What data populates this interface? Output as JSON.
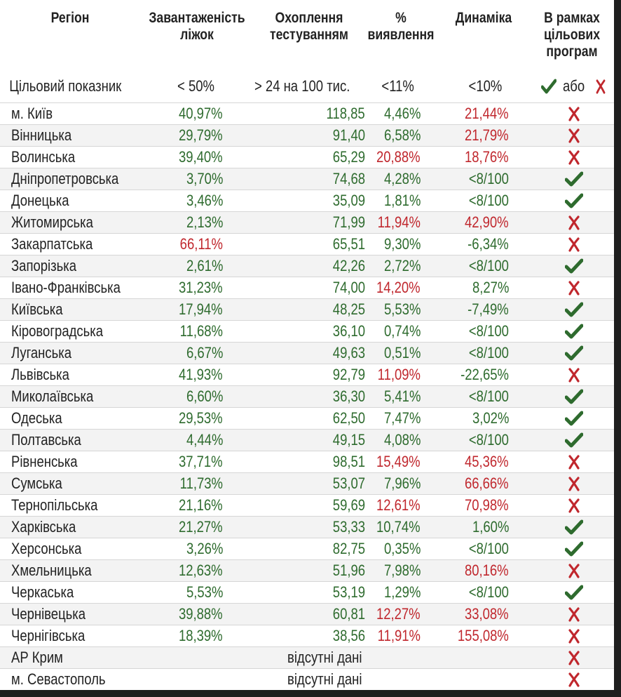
{
  "headers": {
    "region": "Регіон",
    "beds_line1": "Завантаженість",
    "beds_line2": "ліжок",
    "testing_line1": "Охоплення",
    "testing_line2": "тестуванням",
    "detection_line1": "%",
    "detection_line2": "виявлення",
    "dynamics": "Динаміка",
    "program_line1": "В рамках",
    "program_line2": "цільових",
    "program_line3": "програм"
  },
  "targets": {
    "label": "Цільовий показник",
    "beds": "< 50%",
    "testing": "> 24 на 100 тис.",
    "detection": "<11%",
    "dynamics": "<10%",
    "or_word": "або",
    "yes_icon": "check-icon",
    "no_icon": "cross-icon"
  },
  "colors": {
    "good": "#2e6b2e",
    "bad": "#c0272d",
    "neutral": "#222222"
  },
  "rows": [
    {
      "region": "м. Київ",
      "beds": "40,97%",
      "beds_c": "g",
      "testing": "118,85",
      "testing_c": "g",
      "detection": "4,46%",
      "detection_c": "g",
      "dynamics": "21,44%",
      "dynamics_c": "r",
      "program": "no"
    },
    {
      "region": "Вінницька",
      "beds": "29,79%",
      "beds_c": "g",
      "testing": "91,40",
      "testing_c": "g",
      "detection": "6,58%",
      "detection_c": "g",
      "dynamics": "21,79%",
      "dynamics_c": "r",
      "program": "no"
    },
    {
      "region": "Волинська",
      "beds": "39,40%",
      "beds_c": "g",
      "testing": "65,29",
      "testing_c": "g",
      "detection": "20,88%",
      "detection_c": "r",
      "dynamics": "18,76%",
      "dynamics_c": "r",
      "program": "no"
    },
    {
      "region": "Дніпропетровська",
      "beds": "3,70%",
      "beds_c": "g",
      "testing": "74,68",
      "testing_c": "g",
      "detection": "4,28%",
      "detection_c": "g",
      "dynamics": "<8/100",
      "dynamics_c": "g",
      "program": "yes"
    },
    {
      "region": "Донецька",
      "beds": "3,46%",
      "beds_c": "g",
      "testing": "35,09",
      "testing_c": "g",
      "detection": "1,81%",
      "detection_c": "g",
      "dynamics": "<8/100",
      "dynamics_c": "g",
      "program": "yes"
    },
    {
      "region": "Житомирська",
      "beds": "2,13%",
      "beds_c": "g",
      "testing": "71,99",
      "testing_c": "g",
      "detection": "11,94%",
      "detection_c": "r",
      "dynamics": "42,90%",
      "dynamics_c": "r",
      "program": "no"
    },
    {
      "region": "Закарпатська",
      "beds": "66,11%",
      "beds_c": "r",
      "testing": "65,51",
      "testing_c": "g",
      "detection": "9,30%",
      "detection_c": "g",
      "dynamics": "-6,34%",
      "dynamics_c": "g",
      "program": "no"
    },
    {
      "region": "Запорізька",
      "beds": "2,61%",
      "beds_c": "g",
      "testing": "42,26",
      "testing_c": "g",
      "detection": "2,72%",
      "detection_c": "g",
      "dynamics": "<8/100",
      "dynamics_c": "g",
      "program": "yes"
    },
    {
      "region": "Івано-Франківська",
      "beds": "31,23%",
      "beds_c": "g",
      "testing": "74,00",
      "testing_c": "g",
      "detection": "14,20%",
      "detection_c": "r",
      "dynamics": "8,27%",
      "dynamics_c": "g",
      "program": "no"
    },
    {
      "region": "Київська",
      "beds": "17,94%",
      "beds_c": "g",
      "testing": "48,25",
      "testing_c": "g",
      "detection": "5,53%",
      "detection_c": "g",
      "dynamics": "-7,49%",
      "dynamics_c": "g",
      "program": "yes"
    },
    {
      "region": "Кіровоградська",
      "beds": "11,68%",
      "beds_c": "g",
      "testing": "36,10",
      "testing_c": "g",
      "detection": "0,74%",
      "detection_c": "g",
      "dynamics": "<8/100",
      "dynamics_c": "g",
      "program": "yes"
    },
    {
      "region": "Луганська",
      "beds": "6,67%",
      "beds_c": "g",
      "testing": "49,63",
      "testing_c": "g",
      "detection": "0,51%",
      "detection_c": "g",
      "dynamics": "<8/100",
      "dynamics_c": "g",
      "program": "yes"
    },
    {
      "region": "Львівська",
      "beds": "41,93%",
      "beds_c": "g",
      "testing": "92,79",
      "testing_c": "g",
      "detection": "11,09%",
      "detection_c": "r",
      "dynamics": "-22,65%",
      "dynamics_c": "g",
      "program": "no"
    },
    {
      "region": "Миколаївська",
      "beds": "6,60%",
      "beds_c": "g",
      "testing": "36,30",
      "testing_c": "g",
      "detection": "5,41%",
      "detection_c": "g",
      "dynamics": "<8/100",
      "dynamics_c": "g",
      "program": "yes"
    },
    {
      "region": "Одеська",
      "beds": "29,53%",
      "beds_c": "g",
      "testing": "62,50",
      "testing_c": "g",
      "detection": "7,47%",
      "detection_c": "g",
      "dynamics": "3,02%",
      "dynamics_c": "g",
      "program": "yes"
    },
    {
      "region": "Полтавська",
      "beds": "4,44%",
      "beds_c": "g",
      "testing": "49,15",
      "testing_c": "g",
      "detection": "4,08%",
      "detection_c": "g",
      "dynamics": "<8/100",
      "dynamics_c": "g",
      "program": "yes"
    },
    {
      "region": "Рівненська",
      "beds": "37,71%",
      "beds_c": "g",
      "testing": "98,51",
      "testing_c": "g",
      "detection": "15,49%",
      "detection_c": "r",
      "dynamics": "45,36%",
      "dynamics_c": "r",
      "program": "no"
    },
    {
      "region": "Сумська",
      "beds": "11,73%",
      "beds_c": "g",
      "testing": "53,07",
      "testing_c": "g",
      "detection": "7,96%",
      "detection_c": "g",
      "dynamics": "66,66%",
      "dynamics_c": "r",
      "program": "no"
    },
    {
      "region": "Тернопільська",
      "beds": "21,16%",
      "beds_c": "g",
      "testing": "59,69",
      "testing_c": "g",
      "detection": "12,61%",
      "detection_c": "r",
      "dynamics": "70,98%",
      "dynamics_c": "r",
      "program": "no"
    },
    {
      "region": "Харківська",
      "beds": "21,27%",
      "beds_c": "g",
      "testing": "53,33",
      "testing_c": "g",
      "detection": "10,74%",
      "detection_c": "g",
      "dynamics": "1,60%",
      "dynamics_c": "g",
      "program": "yes"
    },
    {
      "region": "Херсонська",
      "beds": "3,26%",
      "beds_c": "g",
      "testing": "82,75",
      "testing_c": "g",
      "detection": "0,35%",
      "detection_c": "g",
      "dynamics": "<8/100",
      "dynamics_c": "g",
      "program": "yes"
    },
    {
      "region": "Хмельницька",
      "beds": "12,63%",
      "beds_c": "g",
      "testing": "51,96",
      "testing_c": "g",
      "detection": "7,98%",
      "detection_c": "g",
      "dynamics": "80,16%",
      "dynamics_c": "r",
      "program": "no"
    },
    {
      "region": "Черкаська",
      "beds": "5,53%",
      "beds_c": "g",
      "testing": "53,19",
      "testing_c": "g",
      "detection": "1,29%",
      "detection_c": "g",
      "dynamics": "<8/100",
      "dynamics_c": "g",
      "program": "yes"
    },
    {
      "region": "Чернівецька",
      "beds": "39,88%",
      "beds_c": "g",
      "testing": "60,81",
      "testing_c": "g",
      "detection": "12,27%",
      "detection_c": "r",
      "dynamics": "33,08%",
      "dynamics_c": "r",
      "program": "no"
    },
    {
      "region": "Чернігівська",
      "beds": "18,39%",
      "beds_c": "g",
      "testing": "38,56",
      "testing_c": "g",
      "detection": "11,91%",
      "detection_c": "r",
      "dynamics": "155,08%",
      "dynamics_c": "r",
      "program": "no"
    },
    {
      "region": "АР Крим",
      "missing": "відсутні дані",
      "program": "no"
    },
    {
      "region": "м. Севастополь",
      "missing": "відсутні дані",
      "program": "no"
    }
  ]
}
